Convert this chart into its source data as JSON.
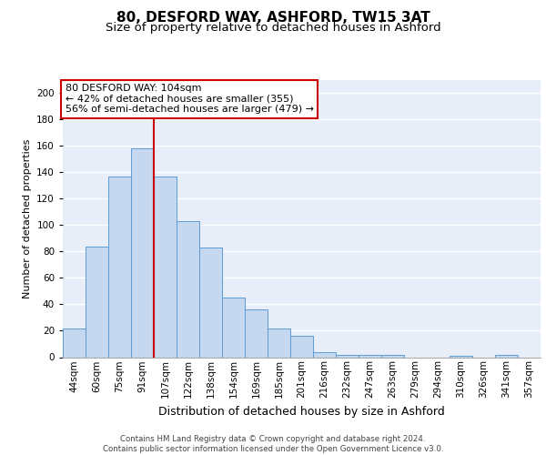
{
  "title1": "80, DESFORD WAY, ASHFORD, TW15 3AT",
  "title2": "Size of property relative to detached houses in Ashford",
  "xlabel": "Distribution of detached houses by size in Ashford",
  "ylabel": "Number of detached properties",
  "categories": [
    "44sqm",
    "60sqm",
    "75sqm",
    "91sqm",
    "107sqm",
    "122sqm",
    "138sqm",
    "154sqm",
    "169sqm",
    "185sqm",
    "201sqm",
    "216sqm",
    "232sqm",
    "247sqm",
    "263sqm",
    "279sqm",
    "294sqm",
    "310sqm",
    "326sqm",
    "341sqm",
    "357sqm"
  ],
  "values": [
    22,
    84,
    137,
    158,
    137,
    103,
    83,
    45,
    36,
    22,
    16,
    4,
    2,
    2,
    2,
    0,
    0,
    1,
    0,
    2,
    0
  ],
  "bar_color": "#c5d8f0",
  "bar_edge_color": "#5b9bd5",
  "vline_x": 3.5,
  "vline_color": "#cc0000",
  "annotation_text": "80 DESFORD WAY: 104sqm\n← 42% of detached houses are smaller (355)\n56% of semi-detached houses are larger (479) →",
  "annotation_box_facecolor": "white",
  "annotation_box_edgecolor": "#cc0000",
  "ylim": [
    0,
    210
  ],
  "yticks": [
    0,
    20,
    40,
    60,
    80,
    100,
    120,
    140,
    160,
    180,
    200
  ],
  "background_color": "#e8eef8",
  "grid_color": "#d0d8e8",
  "footer_text": "Contains HM Land Registry data © Crown copyright and database right 2024.\nContains public sector information licensed under the Open Government Licence v3.0.",
  "title1_fontsize": 11,
  "title2_fontsize": 9.5,
  "xlabel_fontsize": 9,
  "ylabel_fontsize": 8,
  "tick_fontsize": 7.5,
  "annotation_fontsize": 8
}
